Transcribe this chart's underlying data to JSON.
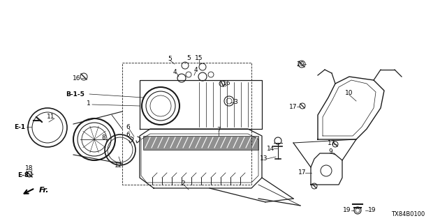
{
  "background_color": "#ffffff",
  "line_color": "#1a1a1a",
  "diagram_code": "TX84B0100",
  "figsize": [
    6.4,
    3.2
  ],
  "dpi": 100,
  "labels": {
    "E-8": [
      31,
      252,
      6.5
    ],
    "18": [
      40,
      243,
      6.5
    ],
    "E-1": [
      30,
      183,
      6.5
    ],
    "11": [
      75,
      168,
      6.5
    ],
    "8": [
      148,
      197,
      6.5
    ],
    "12": [
      168,
      237,
      6.5
    ],
    "1": [
      130,
      145,
      6.5
    ],
    "B-1-5": [
      112,
      133,
      6.5
    ],
    "16a": [
      119,
      108,
      6.5
    ],
    "2": [
      262,
      262,
      6.5
    ],
    "7": [
      308,
      185,
      6.5
    ],
    "6a": [
      186,
      196,
      6.5
    ],
    "6b": [
      186,
      183,
      6.5
    ],
    "3": [
      320,
      148,
      6.5
    ],
    "16b": [
      316,
      118,
      6.5
    ],
    "4a": [
      248,
      102,
      6.5
    ],
    "4b": [
      278,
      100,
      6.5
    ],
    "5a": [
      238,
      83,
      6.5
    ],
    "5b": [
      268,
      82,
      6.5
    ],
    "15": [
      278,
      83,
      6.5
    ],
    "13": [
      380,
      228,
      6.5
    ],
    "14": [
      390,
      212,
      6.5
    ],
    "17a": [
      432,
      248,
      6.5
    ],
    "9": [
      468,
      218,
      6.5
    ],
    "17b": [
      470,
      205,
      6.5
    ],
    "17c": [
      420,
      150,
      6.5
    ],
    "10": [
      498,
      132,
      6.5
    ],
    "20": [
      430,
      90,
      6.5
    ],
    "19a": [
      500,
      298,
      6.5
    ],
    "19b": [
      530,
      298,
      6.5
    ]
  }
}
